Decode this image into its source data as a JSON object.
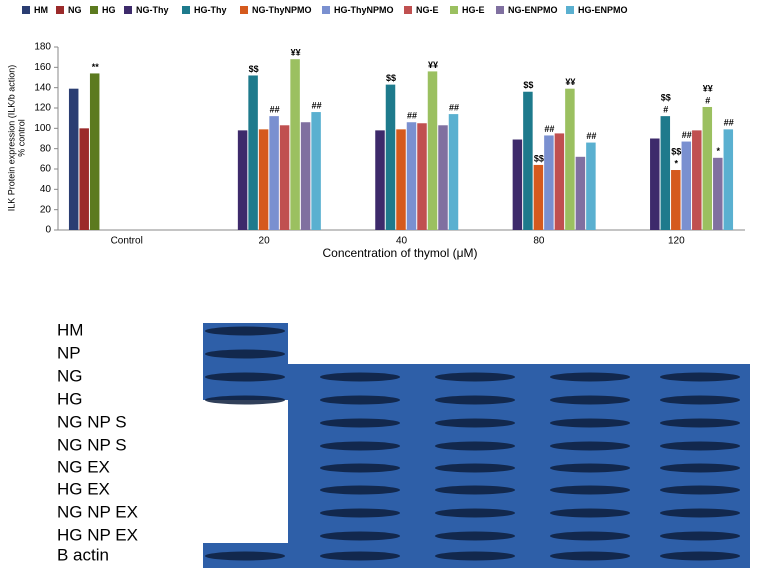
{
  "chart_data": {
    "type": "bar",
    "categories": [
      "Control",
      "20",
      "40",
      "80",
      "120"
    ],
    "x_label": "Concentration of thymol (μM)",
    "y_label": [
      "ILK Protein expression (ILK/b action)",
      "% control"
    ],
    "ylim": [
      0,
      180
    ],
    "yticks": [
      0,
      20,
      40,
      60,
      80,
      100,
      120,
      140,
      160,
      180
    ],
    "series": [
      {
        "name": "HM",
        "color": "#2a3d72",
        "values": [
          139,
          null,
          null,
          null,
          null
        ]
      },
      {
        "name": "NG",
        "color": "#9b2a2a",
        "values": [
          100,
          null,
          null,
          null,
          null
        ]
      },
      {
        "name": "HG",
        "color": "#5c7a1f",
        "values": [
          154,
          null,
          null,
          null,
          null
        ]
      },
      {
        "name": "NG-Thy",
        "color": "#3d2a6b",
        "values": [
          null,
          98,
          98,
          89,
          90
        ]
      },
      {
        "name": "HG-Thy",
        "color": "#1e7a8c",
        "values": [
          null,
          152,
          143,
          136,
          112
        ]
      },
      {
        "name": "NG-ThyNPMO",
        "color": "#d55a1e",
        "values": [
          null,
          99,
          99,
          64,
          59
        ]
      },
      {
        "name": "HG-ThyNPMO",
        "color": "#7a90d0",
        "values": [
          null,
          112,
          106,
          93,
          87
        ]
      },
      {
        "name": "NG-E",
        "color": "#c05050",
        "values": [
          null,
          103,
          105,
          95,
          98
        ]
      },
      {
        "name": "HG-E",
        "color": "#9bc060",
        "values": [
          null,
          168,
          156,
          139,
          121
        ]
      },
      {
        "name": "NG-ENPMO",
        "color": "#8070a0",
        "values": [
          null,
          106,
          103,
          72,
          71
        ]
      },
      {
        "name": "HG-ENPMO",
        "color": "#5ab0d0",
        "values": [
          null,
          116,
          114,
          86,
          99
        ]
      }
    ],
    "annotations": [
      {
        "text": "**",
        "category": "Control",
        "series": "HG"
      },
      {
        "text": "$$",
        "category": "20",
        "series": "HG-Thy"
      },
      {
        "text": "##",
        "category": "20",
        "series": "HG-ThyNPMO"
      },
      {
        "text": "¥¥",
        "category": "20",
        "series": "HG-E"
      },
      {
        "text": "##",
        "category": "20",
        "series": "HG-ENPMO"
      },
      {
        "text": "$$",
        "category": "40",
        "series": "HG-Thy"
      },
      {
        "text": "##",
        "category": "40",
        "series": "HG-ThyNPMO"
      },
      {
        "text": "¥¥",
        "category": "40",
        "series": "HG-E"
      },
      {
        "text": "##",
        "category": "40",
        "series": "HG-ENPMO"
      },
      {
        "text": "$$",
        "category": "80",
        "series": "HG-Thy"
      },
      {
        "text": "$$",
        "category": "80",
        "series": "NG-ThyNPMO"
      },
      {
        "text": "##",
        "category": "80",
        "series": "HG-ThyNPMO"
      },
      {
        "text": "¥¥",
        "category": "80",
        "series": "HG-E"
      },
      {
        "text": "##",
        "category": "80",
        "series": "HG-ENPMO"
      },
      {
        "text": "#",
        "category": "120",
        "series": "HG-Thy"
      },
      {
        "text": "$$",
        "category": "120",
        "series": "HG-Thy"
      },
      {
        "text": "*",
        "category": "120",
        "series": "NG-ThyNPMO"
      },
      {
        "text": "$$",
        "category": "120",
        "series": "NG-ThyNPMO"
      },
      {
        "text": "##",
        "category": "120",
        "series": "HG-ThyNPMO"
      },
      {
        "text": "#",
        "category": "120",
        "series": "HG-E"
      },
      {
        "text": "¥¥",
        "category": "120",
        "series": "HG-E"
      },
      {
        "text": "*",
        "category": "120",
        "series": "NG-ENPMO"
      },
      {
        "text": "##",
        "category": "120",
        "series": "HG-ENPMO"
      }
    ]
  },
  "blot": {
    "labels": [
      "HM",
      "NP",
      "NG",
      "HG",
      "NG NP S",
      "NG NP S",
      "NG EX",
      "HG EX",
      "NG NP EX",
      "HG NP EX",
      "B actin"
    ]
  }
}
